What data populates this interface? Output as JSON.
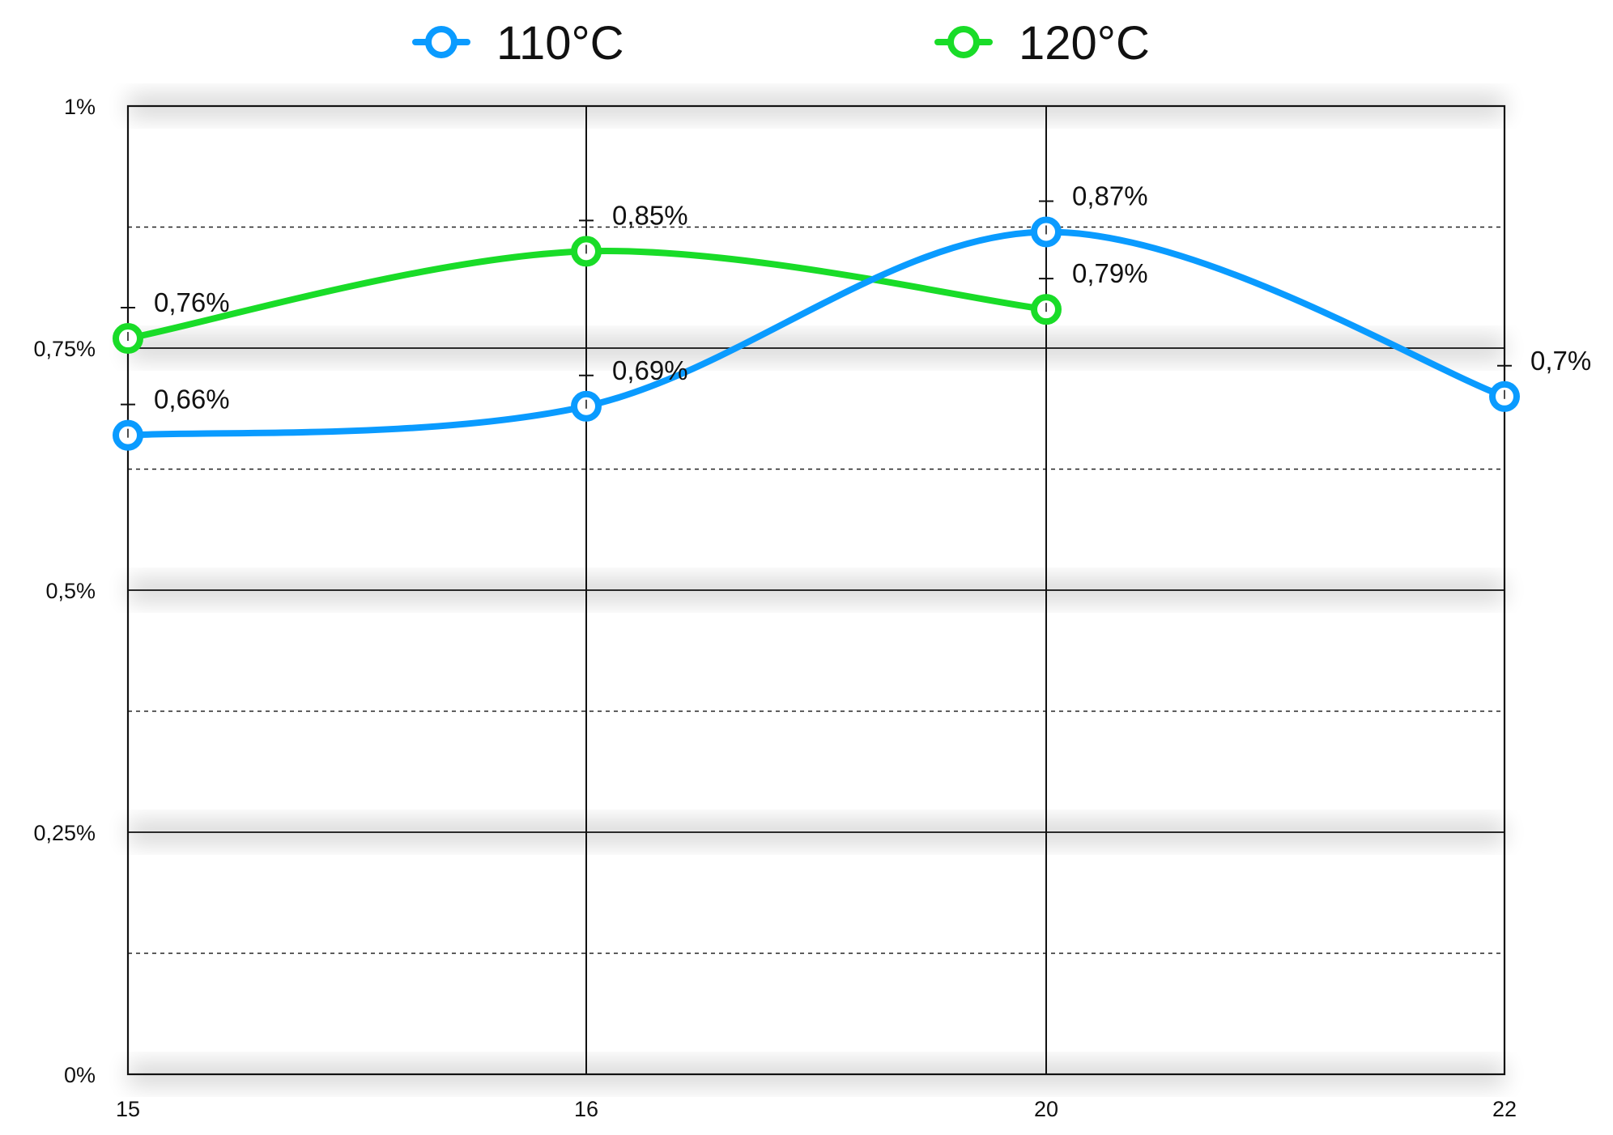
{
  "chart_data": {
    "type": "line",
    "title": "",
    "xlabel": "",
    "ylabel": "",
    "categories": [
      "15",
      "16",
      "20",
      "22"
    ],
    "y_ticks": [
      "0%",
      "0,25%",
      "0,5%",
      "0,75%",
      "1%"
    ],
    "ylim": [
      0,
      1
    ],
    "grid": true,
    "legend_position": "top",
    "series": [
      {
        "name": "110°C",
        "color": "#0a9bff",
        "values": [
          0.66,
          0.69,
          0.87,
          0.7
        ],
        "labels": [
          "0,66%",
          "0,69%",
          "0,87%",
          "0,7%"
        ]
      },
      {
        "name": "120°C",
        "color": "#19dc28",
        "values": [
          0.76,
          0.85,
          0.79,
          null
        ],
        "labels": [
          "0,76%",
          "0,85%",
          "0,79%",
          null
        ]
      }
    ]
  }
}
